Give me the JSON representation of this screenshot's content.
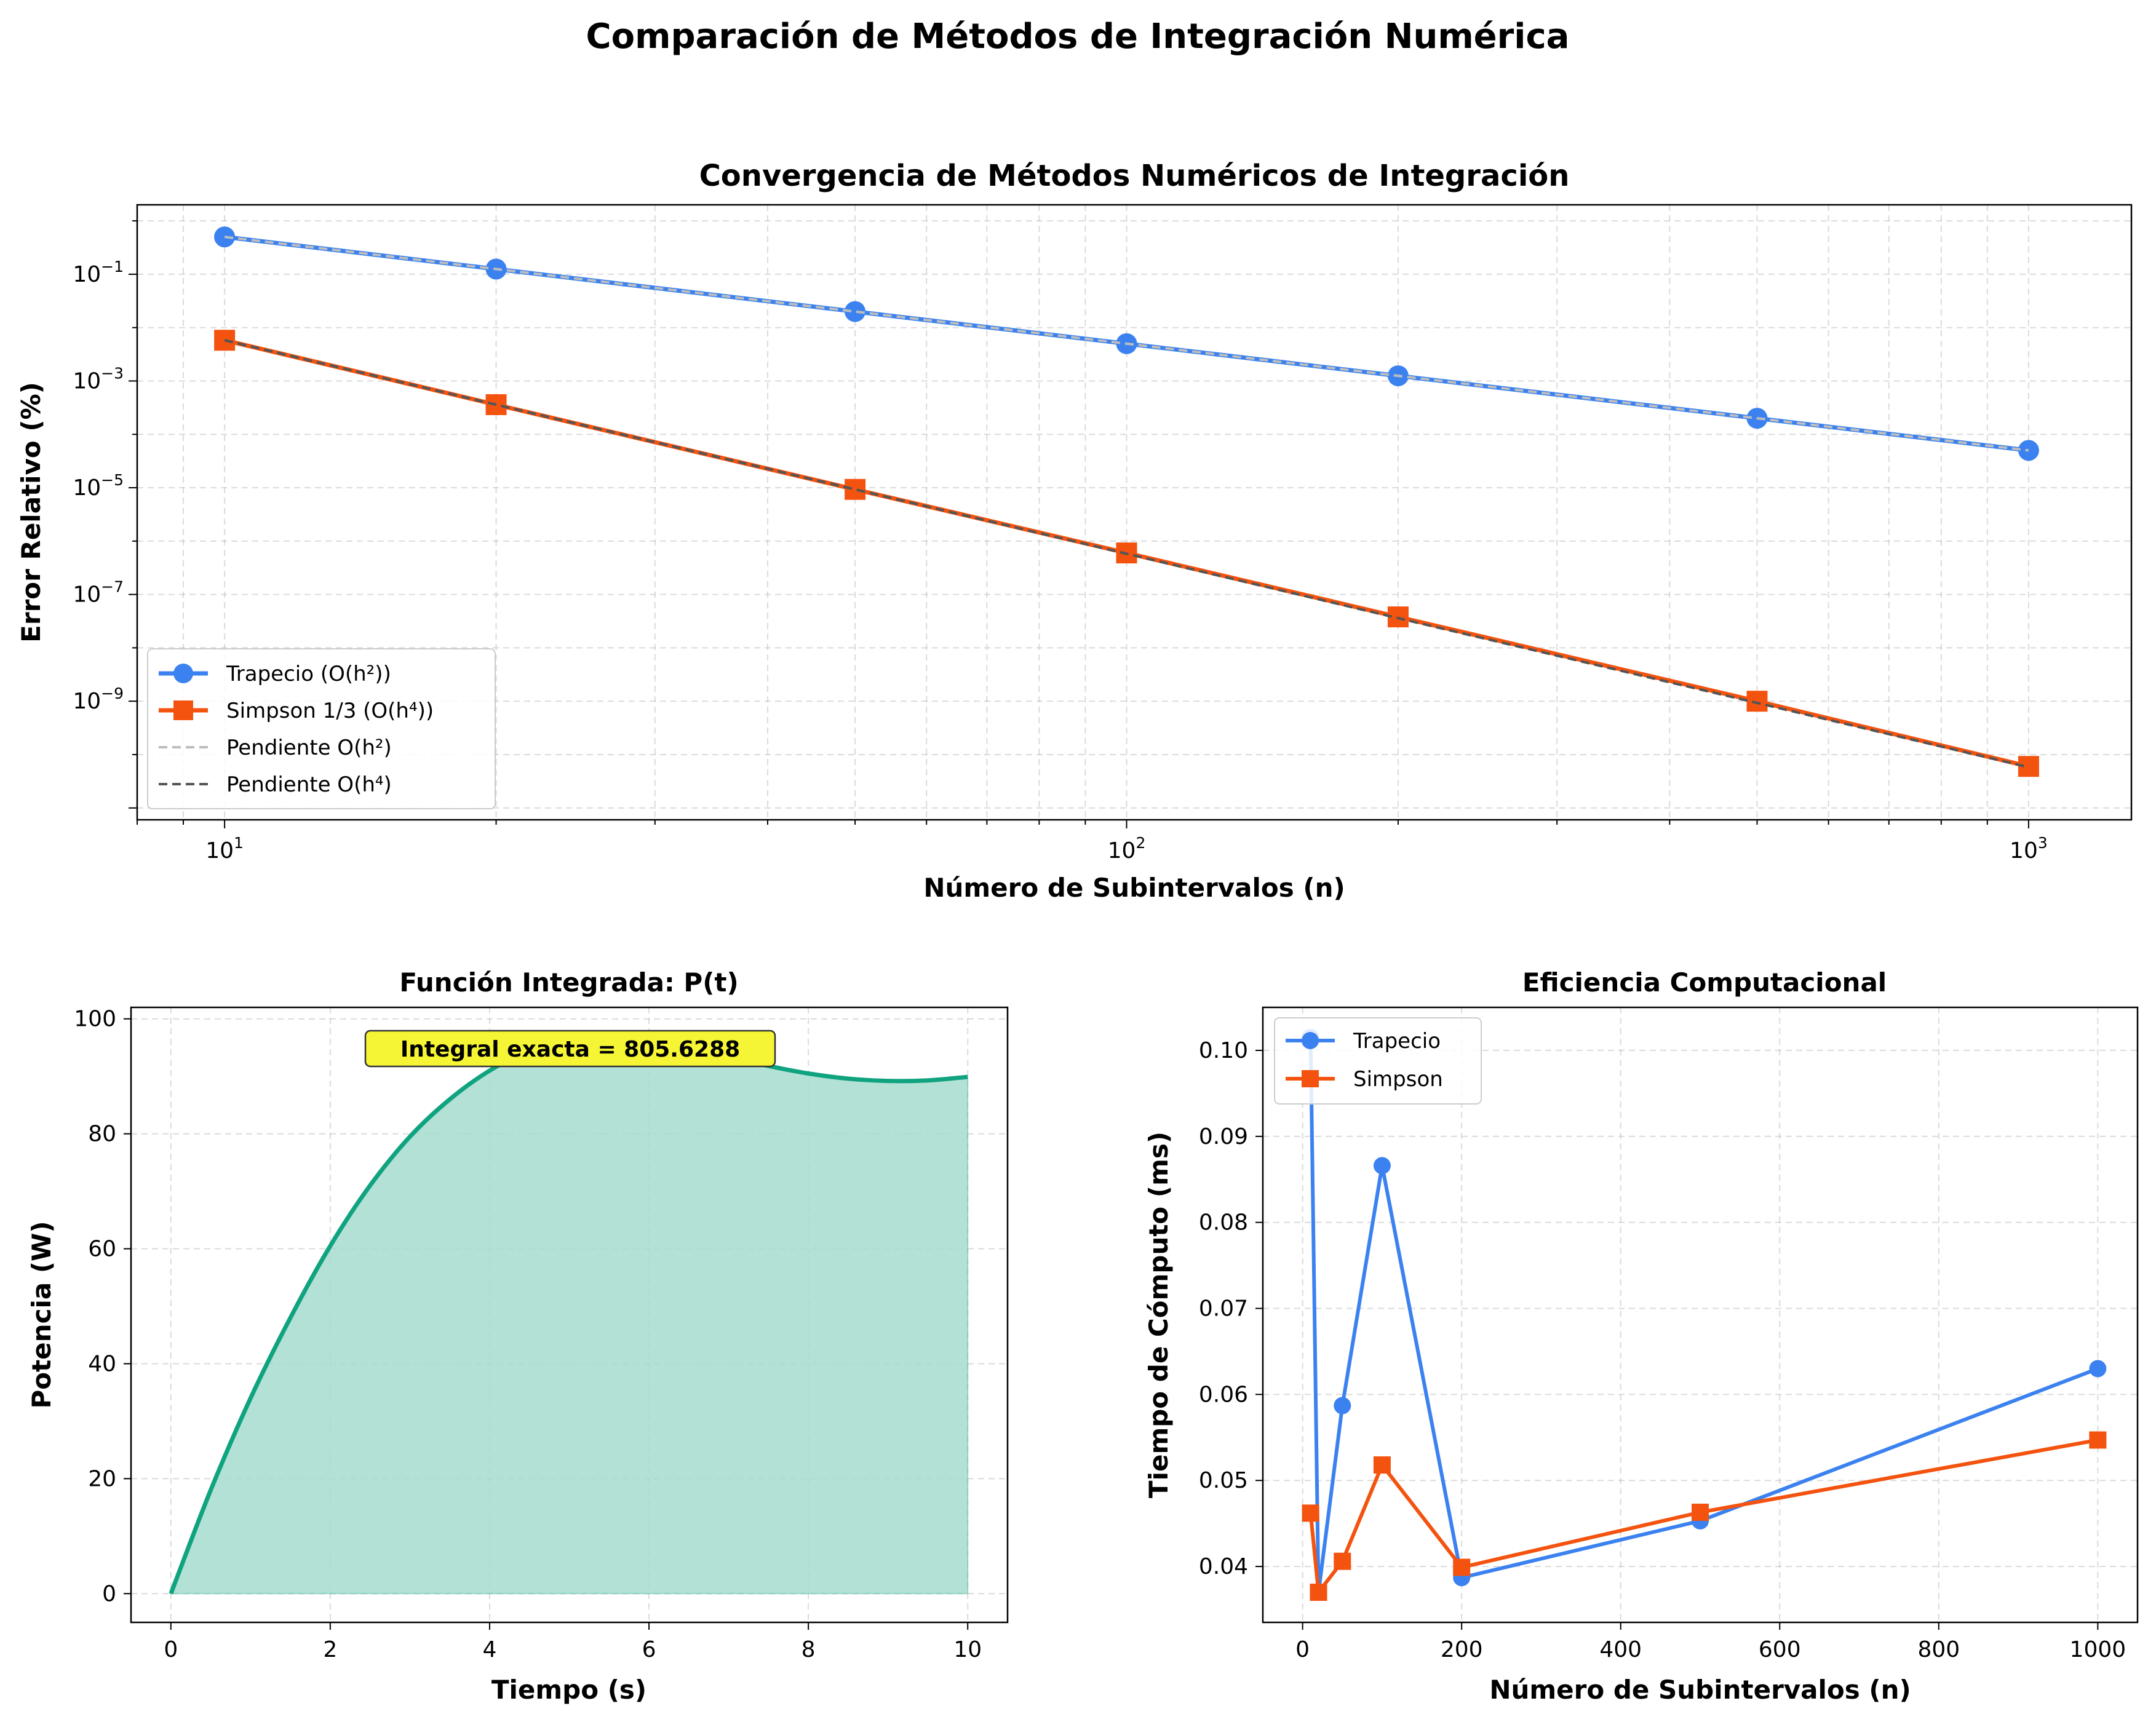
{
  "figure_title": "Comparación de Métodos de Integración Numérica",
  "colors": {
    "trapecio": "#3b82f0",
    "simpson": "#f4530f",
    "funcion": "#0fa37f",
    "fill": "#a6dccf",
    "annotation_box": "#f5f535",
    "slope_h2": "#bdbdbd",
    "slope_h4": "#555555"
  },
  "chart_data": [
    {
      "type": "line",
      "title": "Convergencia de Métodos Numéricos de Integración",
      "xlabel": "Número de Subintervalos (n)",
      "ylabel": "Error Relativo (%)",
      "xscale": "log",
      "yscale": "log",
      "xlim": [
        8,
        1300
      ],
      "ylim": [
        6e-12,
        2
      ],
      "x_ticks": [
        10,
        100,
        1000
      ],
      "x_tick_labels": [
        [
          "10",
          "1"
        ],
        [
          "10",
          "2"
        ],
        [
          "10",
          "3"
        ]
      ],
      "y_ticks": [
        1e-09,
        1e-07,
        1e-05,
        0.001,
        0.1
      ],
      "y_tick_labels": [
        [
          "10",
          "−9"
        ],
        [
          "10",
          "−7"
        ],
        [
          "10",
          "−5"
        ],
        [
          "10",
          "−3"
        ],
        [
          "10",
          "−1"
        ]
      ],
      "grid": true,
      "legend_position": "lower-left",
      "x": [
        10,
        20,
        50,
        100,
        200,
        500,
        1000
      ],
      "series": [
        {
          "name": "Trapecio (O(h²))",
          "values": [
            0.5,
            0.125,
            0.02,
            0.005,
            0.00125,
            0.0002,
            5e-05
          ],
          "marker": "circle",
          "style": "solid"
        },
        {
          "name": "Simpson 1/3 (O(h⁴))",
          "values": [
            0.0058,
            0.00036,
            9.3e-06,
            6e-07,
            3.8e-08,
            1e-09,
            6e-11
          ],
          "marker": "square",
          "style": "solid"
        },
        {
          "name": "Pendiente O(h²)",
          "values": [
            0.5,
            0.125,
            0.02,
            0.005,
            0.00125,
            0.0002,
            5e-05
          ],
          "marker": "none",
          "style": "dashed"
        },
        {
          "name": "Pendiente O(h⁴)",
          "values": [
            0.0058,
            0.00036,
            9.3e-06,
            5.8e-07,
            3.6e-08,
            9.3e-10,
            5.8e-11
          ],
          "marker": "none",
          "style": "dashed"
        }
      ]
    },
    {
      "type": "area",
      "title": "Función Integrada: P(t)",
      "xlabel": "Tiempo (s)",
      "ylabel": "Potencia (W)",
      "xlim": [
        -0.5,
        10.5
      ],
      "ylim": [
        -5,
        102
      ],
      "x_ticks": [
        0,
        2,
        4,
        6,
        8,
        10
      ],
      "y_ticks": [
        0,
        20,
        40,
        60,
        80,
        100
      ],
      "grid": true,
      "annotation": "Integral exacta = 805.6288",
      "x": [
        0,
        0.5,
        1,
        1.5,
        2,
        2.5,
        3,
        3.5,
        4,
        4.5,
        5,
        5.5,
        6,
        6.5,
        7,
        7.5,
        8,
        8.5,
        9,
        9.5,
        10
      ],
      "values": [
        0,
        18,
        34,
        48,
        60.5,
        71,
        79.5,
        86,
        91,
        94.5,
        96.5,
        97,
        96.2,
        94.8,
        93.3,
        91.8,
        90.5,
        89.6,
        89.2,
        89.3,
        89.9
      ]
    },
    {
      "type": "line",
      "title": "Eficiencia Computacional",
      "xlabel": "Número de Subintervalos (n)",
      "ylabel": "Tiempo de Cómputo (ms)",
      "xlim": [
        -50,
        1050
      ],
      "ylim": [
        0.0335,
        0.105
      ],
      "x_ticks": [
        0,
        200,
        400,
        600,
        800,
        1000
      ],
      "y_ticks": [
        0.04,
        0.05,
        0.06,
        0.07,
        0.08,
        0.09,
        0.1
      ],
      "y_tick_labels": [
        "0.04",
        "0.05",
        "0.06",
        "0.07",
        "0.08",
        "0.09",
        "0.10"
      ],
      "grid": true,
      "legend_position": "upper-left",
      "x": [
        10,
        20,
        50,
        100,
        200,
        500,
        1000
      ],
      "series": [
        {
          "name": "Trapecio",
          "values": [
            0.1015,
            0.037,
            0.0587,
            0.0866,
            0.0387,
            0.0453,
            0.063
          ],
          "marker": "circle"
        },
        {
          "name": "Simpson",
          "values": [
            0.0462,
            0.037,
            0.0406,
            0.0518,
            0.0399,
            0.0463,
            0.0547
          ],
          "marker": "square"
        }
      ]
    }
  ]
}
